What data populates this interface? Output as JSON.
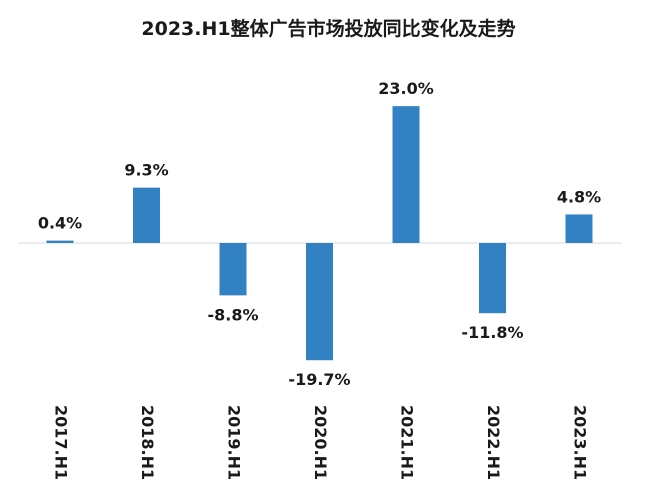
{
  "chart_data": {
    "type": "bar",
    "title": "2023.H1整体广告市场投放同比变化及走势",
    "categories": [
      "2017.H1",
      "2018.H1",
      "2019.H1",
      "2020.H1",
      "2021.H1",
      "2022.H1",
      "2023.H1"
    ],
    "values": [
      0.4,
      9.3,
      -8.8,
      -19.7,
      23.0,
      -11.8,
      4.8
    ],
    "data_labels": [
      "0.4%",
      "9.3%",
      "-8.8%",
      "-19.7%",
      "23.0%",
      "-11.8%",
      "4.8%"
    ],
    "xlabel": "",
    "ylabel": "",
    "unit": "%",
    "bar_color": "#3282c3",
    "baseline_color": "#d9d9d9",
    "grid": false,
    "legend": "none"
  }
}
